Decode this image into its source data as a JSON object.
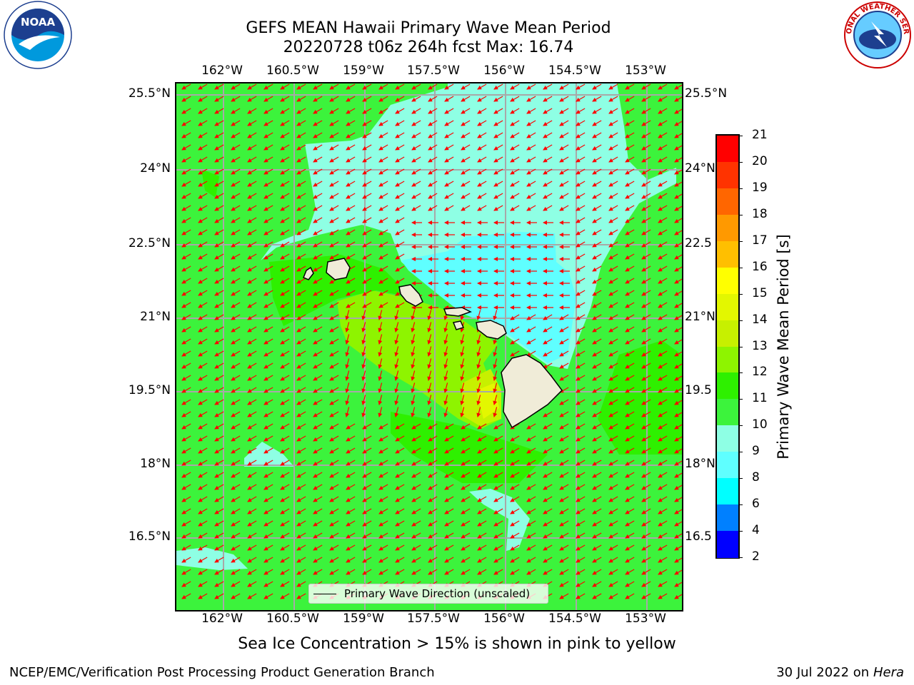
{
  "title": {
    "line1": "GEFS MEAN Hawaii Primary Wave Mean Period",
    "line2": "20220728 t06z 264h fcst   Max: 16.74"
  },
  "longitude_labels": [
    "162°W",
    "160.5°W",
    "159°W",
    "157.5°W",
    "156°W",
    "154.5°W",
    "153°W"
  ],
  "latitude_labels_left": [
    "25.5°N",
    "24°N",
    "22.5°N",
    "21°N",
    "19.5°N",
    "18°N",
    "16.5°N"
  ],
  "latitude_labels_right": [
    "25.5°N",
    "24°N",
    "22.5",
    "21°N",
    "19.5",
    "18°N",
    "16.5"
  ],
  "legend": {
    "label": "Primary Wave Direction (unscaled)"
  },
  "colorbar": {
    "label": "Primary Wave Mean Period [s]",
    "ticks": [
      "21",
      "20",
      "19",
      "18",
      "17",
      "16",
      "15",
      "14",
      "13",
      "12",
      "11",
      "10",
      "9",
      "8",
      "6",
      "4",
      "2"
    ],
    "colors": [
      "#ff0000",
      "#ff3300",
      "#ff6600",
      "#ff9900",
      "#ffbf00",
      "#ffff00",
      "#e3f700",
      "#c7f000",
      "#8ef400",
      "#2ef000",
      "#3cf33c",
      "#8effe4",
      "#5fffff",
      "#00ffff",
      "#0080ff",
      "#0000ff"
    ]
  },
  "sea_ice_note": "Sea Ice Concentration > 15% is shown in pink to yellow",
  "footer": {
    "left": "NCEP/EMC/Verification Post Processing Product Generation Branch",
    "right_prefix": "30 Jul 2022 on ",
    "right_italic": "Hera"
  },
  "logos": {
    "left": "NOAA",
    "right": "NATIONAL WEATHER SERVICE"
  },
  "colors": {
    "background_field": "#3cf33c",
    "arrows": "#ff0000",
    "land": "#f0ecd8"
  }
}
